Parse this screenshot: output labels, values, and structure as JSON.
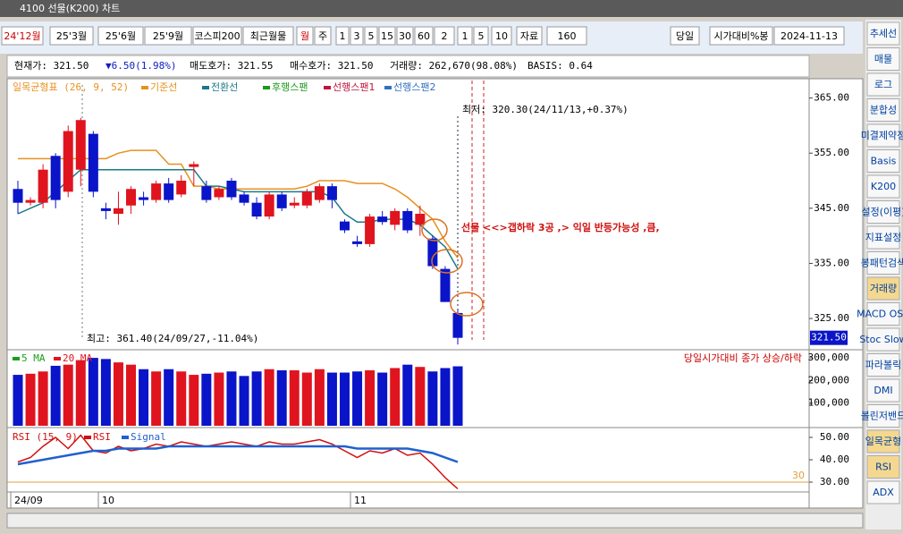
{
  "window": {
    "title": "4100 선물(K200) 차트"
  },
  "toolbar": {
    "items": [
      "24'12월",
      "25'3월",
      "25'6월",
      "25'9월",
      "코스피200",
      "최근월물",
      "월",
      "주",
      "1",
      "3",
      "5",
      "15",
      "30",
      "60",
      "2",
      "1",
      "5",
      "10",
      "자료",
      "160",
      "당일",
      "시가대비%봉",
      "2024-11-13"
    ]
  },
  "info_bar": [
    "현재가: 321.50",
    "▼6.50(1.98%)",
    "매도호가: 321.55",
    "매수호가: 321.50",
    "거래량: 262,670(98.08%)",
    "BASIS: 0.64"
  ],
  "sidebar": [
    "추세선",
    "매물",
    "로그",
    "분합성",
    "미결제약정",
    "Basis",
    "K200",
    "설정(이평)",
    "지표설정",
    "봉패턴검색",
    "거래량",
    "MACD OSC",
    "Stoc Slow",
    "파라볼릭",
    "DMI",
    "볼린저밴드",
    "일목균형",
    "RSI",
    "ADX"
  ],
  "x_axis_labels": [
    "24/09",
    "10",
    "11"
  ],
  "chart_data": [
    {
      "type": "candlestick",
      "legend_title": "일목균형표 (26, 9, 52)",
      "legend_extra": [
        {
          "name": "후행스팬",
          "color": "#1a9a1a"
        },
        {
          "name": "선행스팬1",
          "color": "#c0143c"
        },
        {
          "name": "선행스팬2",
          "color": "#3070c0"
        }
      ],
      "up_color": "#e0141e",
      "down_color": "#0a14c8",
      "open": [
        348.5,
        346,
        346,
        354.5,
        348,
        352,
        358.5,
        345,
        344,
        345.5,
        347,
        346.5,
        349.5,
        347.5,
        352.5,
        349,
        347,
        350,
        347.5,
        346,
        343.5,
        347.5,
        345.5,
        345.5,
        346.5,
        349,
        342.6,
        339,
        338.5,
        343.5,
        342,
        344.5,
        342,
        339.5,
        334,
        326
      ],
      "high": [
        350,
        347,
        353,
        355,
        360,
        361.4,
        359,
        346,
        348,
        349,
        348,
        350,
        350.5,
        351,
        353.5,
        350,
        349,
        350.5,
        348,
        347,
        348,
        348,
        347,
        348.5,
        349.5,
        349.5,
        343,
        340,
        344,
        344.5,
        345,
        345,
        345.5,
        340,
        334.5,
        326.5
      ],
      "low": [
        344,
        345.5,
        345,
        345,
        347,
        349,
        347,
        343,
        342,
        344,
        345.5,
        346,
        346,
        347,
        349,
        346,
        346.5,
        346.5,
        345.5,
        343,
        343,
        344.5,
        345,
        345,
        346,
        345,
        340.5,
        338,
        338,
        342,
        341,
        340.5,
        340,
        334,
        328,
        320.3
      ],
      "close": [
        346,
        346.5,
        352,
        346.5,
        359,
        361,
        348,
        344.5,
        345,
        348.5,
        346.5,
        349.5,
        346.5,
        350,
        353,
        346.5,
        348.5,
        347,
        346,
        343.5,
        347.5,
        345,
        346,
        348,
        349,
        346.5,
        341,
        338.5,
        343.5,
        342.5,
        344.5,
        341,
        344,
        334.5,
        328,
        321.5
      ],
      "series": [
        {
          "name": "기준선",
          "color": "#e8901e",
          "values": [
            354,
            354,
            354,
            354,
            354,
            354,
            354,
            354,
            355,
            355.5,
            355.5,
            355.5,
            353,
            353,
            349,
            349,
            348.5,
            348.5,
            348.5,
            348.5,
            348.5,
            348.5,
            348.5,
            349,
            350,
            350,
            350,
            349.5,
            349.5,
            349.5,
            348.5,
            347,
            345,
            343,
            339,
            336
          ]
        },
        {
          "name": "전환선",
          "color": "#1a7a8a",
          "values": [
            344,
            345,
            346,
            348,
            350,
            352,
            352,
            352,
            352,
            352,
            352,
            352,
            352,
            352,
            352,
            349,
            349,
            348.5,
            348,
            348,
            348,
            348,
            348,
            348,
            348,
            347,
            344,
            342.5,
            342.5,
            343,
            343,
            343,
            342,
            340,
            338,
            334
          ]
        }
      ],
      "last_price_label": "321.50",
      "annotations": [
        "최저: 320.30(24/11/13,+0.37%)",
        "최고: 361.40(24/09/27,-11.04%)",
        "선물 <<>갭하락 3공 ,> 익일 반등가능성 ,큼,"
      ],
      "ylim": [
        319.5,
        368.5
      ],
      "yticks": [
        {
          "value": 325,
          "label": "325.00"
        },
        {
          "value": 335,
          "label": "335.00"
        },
        {
          "value": 345,
          "label": "345.00"
        },
        {
          "value": 355,
          "label": "355.00"
        },
        {
          "value": 365,
          "label": "365.00"
        }
      ]
    },
    {
      "type": "bar",
      "legend": [
        {
          "name": "5 MA",
          "color": "#1aa01a"
        },
        {
          "name": "20 MA",
          "color": "#e0141e"
        }
      ],
      "note": "당일시가대비 종가 상승/하락",
      "values": [
        225000,
        230000,
        240000,
        265000,
        270000,
        290000,
        300000,
        295000,
        280000,
        270000,
        250000,
        240000,
        250000,
        240000,
        225000,
        230000,
        235000,
        240000,
        220000,
        240000,
        250000,
        245000,
        245000,
        235000,
        250000,
        235000,
        235000,
        240000,
        245000,
        235000,
        255000,
        270000,
        260000,
        240000,
        255000,
        262670
      ],
      "ylim": [
        0,
        332000
      ],
      "yticks": [
        {
          "value": 100000,
          "label": "100,000"
        },
        {
          "value": 200000,
          "label": "200,000"
        },
        {
          "value": 300000,
          "label": "300,000"
        }
      ]
    },
    {
      "type": "line",
      "legend_title": "RSI (15, 9)",
      "series": [
        {
          "name": "RSI",
          "color": "#d01010",
          "values": [
            39,
            41,
            46,
            50,
            45,
            51,
            44,
            43,
            46,
            44,
            45,
            47,
            46,
            48,
            47,
            46,
            47,
            48,
            47,
            46,
            48,
            47,
            47,
            48,
            49,
            47,
            44,
            41,
            44,
            43,
            45,
            42,
            43,
            38,
            32,
            27
          ]
        },
        {
          "name": "Signal",
          "color": "#2060d0",
          "values": [
            38,
            39,
            40,
            41,
            42,
            43,
            44,
            44,
            45,
            45,
            45,
            45,
            46,
            46,
            46,
            46,
            46,
            46,
            46,
            46,
            46,
            46,
            46,
            46,
            46,
            46,
            46,
            45,
            45,
            45,
            45,
            45,
            44,
            43,
            41,
            39
          ]
        }
      ],
      "reference": 30,
      "ylim": [
        26,
        54
      ],
      "yticks": [
        {
          "value": 30,
          "label": "30.00"
        },
        {
          "value": 40,
          "label": "40.00"
        },
        {
          "value": 50,
          "label": "50.00"
        }
      ]
    }
  ]
}
